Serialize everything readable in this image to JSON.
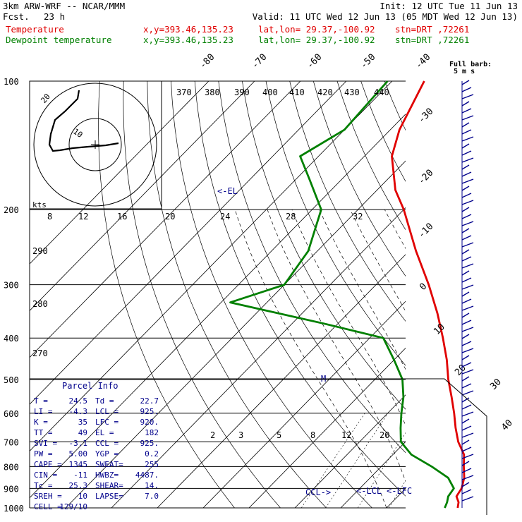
{
  "header": {
    "model": "3km ARW-WRF -- NCAR/MMM",
    "init": "Init: 12 UTC Tue 11 Jun 13",
    "fcst_label": "Fcst.",
    "fcst_value": "23 h",
    "valid": "Valid: 11 UTC Wed 12 Jun 13 (05 MDT Wed 12 Jun 13)",
    "temp_label": "Temperature",
    "dew_label": "Dewpoint temperature",
    "xy": "x,y=393.46,135.23",
    "latlon": "lat,lon= 29.37,-100.92",
    "stn": "stn=DRT ,72261",
    "colors": {
      "temp": "#e00000",
      "dew": "#008000",
      "text": "#000000",
      "panel": "#00008b"
    }
  },
  "chart_data": {
    "type": "line",
    "pressure_levels": [
      100,
      200,
      300,
      400,
      500,
      600,
      700,
      800,
      900,
      1000
    ],
    "series": [
      {
        "name": "Temperature",
        "color": "#e00000",
        "points": [
          [
            1000,
            25.5
          ],
          [
            970,
            24.5
          ],
          [
            940,
            22.8
          ],
          [
            900,
            22.2
          ],
          [
            850,
            20.5
          ],
          [
            800,
            18.0
          ],
          [
            750,
            15.5
          ],
          [
            700,
            11.5
          ],
          [
            650,
            8.0
          ],
          [
            600,
            4.5
          ],
          [
            550,
            0.5
          ],
          [
            500,
            -4.0
          ],
          [
            450,
            -8.5
          ],
          [
            400,
            -14.0
          ],
          [
            350,
            -20.5
          ],
          [
            300,
            -28.5
          ],
          [
            250,
            -38.5
          ],
          [
            200,
            -50.0
          ],
          [
            180,
            -56.0
          ],
          [
            150,
            -64.0
          ],
          [
            130,
            -68.0
          ],
          [
            100,
            -73.0
          ]
        ]
      },
      {
        "name": "Dewpoint temperature",
        "color": "#008000",
        "points": [
          [
            1000,
            22.7
          ],
          [
            970,
            22.0
          ],
          [
            940,
            21.0
          ],
          [
            900,
            20.5
          ],
          [
            850,
            17.0
          ],
          [
            800,
            11.0
          ],
          [
            750,
            4.0
          ],
          [
            700,
            -1.0
          ],
          [
            650,
            -4.0
          ],
          [
            600,
            -7.0
          ],
          [
            550,
            -10.0
          ],
          [
            500,
            -14.0
          ],
          [
            450,
            -20.0
          ],
          [
            400,
            -27.0
          ],
          [
            370,
            -43.0
          ],
          [
            330,
            -68.0
          ],
          [
            300,
            -60.0
          ],
          [
            250,
            -62.0
          ],
          [
            200,
            -68.0
          ],
          [
            170,
            -77.0
          ],
          [
            150,
            -84.0
          ],
          [
            130,
            -80.0
          ],
          [
            100,
            -81.0
          ]
        ]
      }
    ],
    "temperature_labels": [
      "-80",
      "-70",
      "-60",
      "-50",
      "-40",
      "-30",
      "-20",
      "-10",
      "0",
      "10",
      "20",
      "30",
      "40"
    ],
    "theta_labels": [
      "370",
      "380",
      "390",
      "400",
      "410",
      "420",
      "430",
      "440"
    ],
    "theta_k_labels": [
      "290",
      "280",
      "270"
    ],
    "mixing_ratio_labels": [
      "2",
      "3",
      "5",
      "8",
      "12",
      "20"
    ],
    "hodograph": {
      "units": "kts",
      "speed_rings": [
        "10",
        "20"
      ],
      "ticks": [
        "8",
        "12",
        "16",
        "20",
        "24",
        "28",
        "32"
      ]
    },
    "wind_barb_label": "Full barb: 5 m s",
    "annotations": {
      "el": "<-EL",
      "ccl": "CCL->",
      "lcl": "<-LCL",
      "lfc": "<-LFC",
      "m": "M"
    }
  },
  "parcel_info": {
    "title": "Parcel Info",
    "rows": [
      [
        "T  =",
        "24.5",
        "Td =",
        "22.7"
      ],
      [
        "LI =",
        "-4.3",
        "LCL =",
        "925."
      ],
      [
        "K  =",
        "35",
        "LFC =",
        "920."
      ],
      [
        "TT =",
        "49",
        "EL =",
        "182"
      ],
      [
        "SVI =",
        "-3.1",
        "CCL =",
        "925."
      ],
      [
        "PW =",
        "5.00",
        "YGP =",
        "0.2"
      ],
      [
        "CAPE =",
        "1345",
        "SWEAT=",
        "255"
      ],
      [
        "CIN =",
        "-11",
        "HWBZ=",
        "4487."
      ],
      [
        "Tc =",
        "25.3",
        "SHEAR=",
        "14."
      ],
      [
        "SREH =",
        "10",
        "LAPSE=",
        "7.0"
      ],
      [
        "CELL =",
        "129/10",
        "",
        ""
      ]
    ]
  }
}
